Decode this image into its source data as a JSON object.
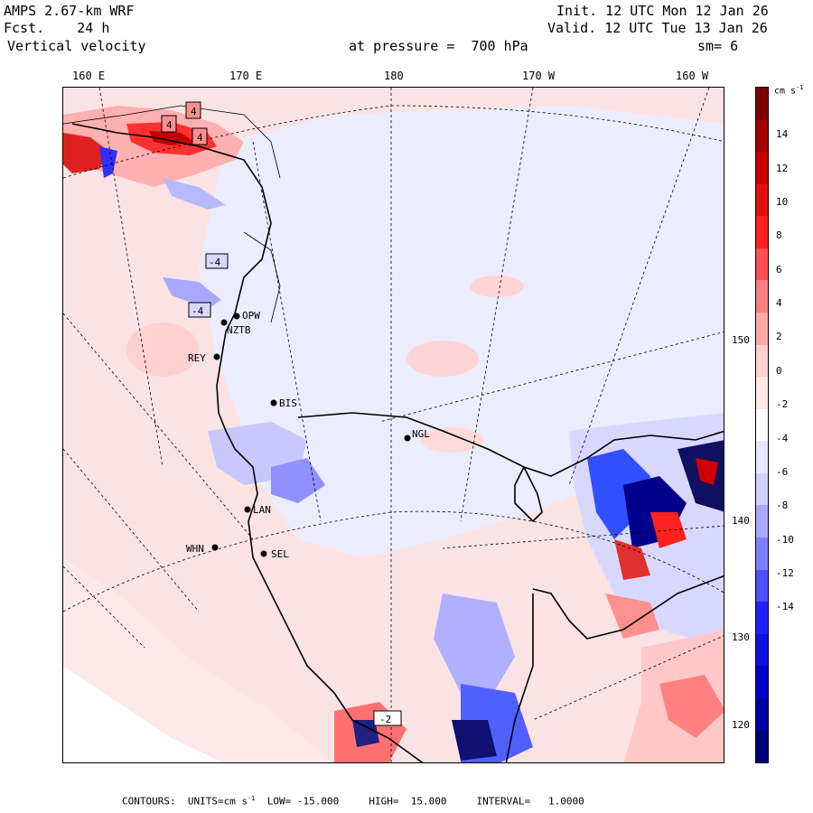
{
  "header": {
    "model": "AMPS 2.67-km WRF",
    "forecast": "Fcst.    24 h",
    "variable": "Vertical velocity",
    "init": "Init. 12 UTC Mon 12 Jan 26",
    "valid": "Valid. 12 UTC Tue 13 Jan 26",
    "pressure": "at pressure =  700 hPa",
    "smoothing": "sm= 6"
  },
  "longitude_labels": [
    "160 E",
    "170 E",
    "180",
    "170 W",
    "160 W"
  ],
  "latitude_labels": [
    "150 W",
    "140 W",
    "130 W",
    "120 W"
  ],
  "stations": [
    "OPW",
    "NZTB",
    "REY",
    "BIS",
    "NGL",
    "LAN",
    "WHN",
    "SEL"
  ],
  "contour_labels": [
    "4",
    "4",
    "4",
    "-4",
    "-4",
    "-2"
  ],
  "colorbar": {
    "unit": "cm s",
    "unit_exp": "-1",
    "ticks": [
      "14",
      "12",
      "10",
      "8",
      "6",
      "4",
      "2",
      "0",
      "-2",
      "-4",
      "-6",
      "-8",
      "-10",
      "-12",
      "-14"
    ],
    "colors": [
      "#7a0000",
      "#a30000",
      "#c80000",
      "#e01010",
      "#ff2020",
      "#ff5050",
      "#ff8080",
      "#ffa8a8",
      "#ffd0d0",
      "#ffe8e8",
      "#ffffff",
      "#e8e8ff",
      "#d0d0ff",
      "#a8a8ff",
      "#8080ff",
      "#5050ff",
      "#2020ff",
      "#1010e0",
      "#0000c8",
      "#0000a3",
      "#00007a"
    ]
  },
  "footer": {
    "text": "CONTOURS:  UNITS=cm s",
    "exp": "-1",
    "rest": "  LOW= -15.000     HIGH=  15.000     INTERVAL=   1.0000"
  }
}
